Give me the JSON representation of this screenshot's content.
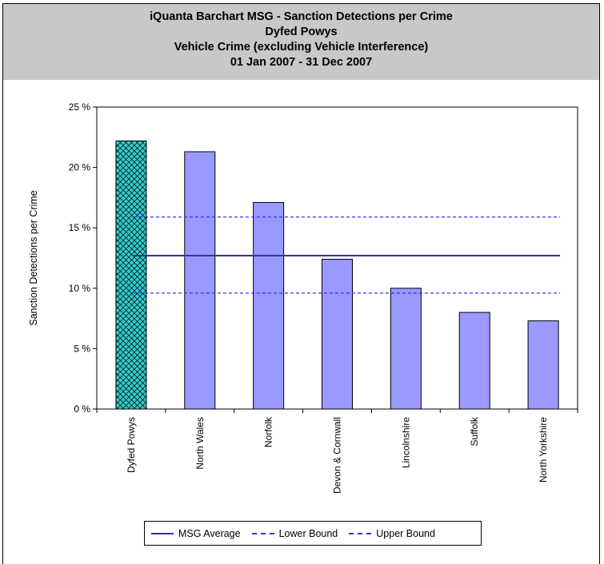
{
  "header": {
    "line1": "iQuanta Barchart MSG - Sanction Detections per Crime",
    "line2": "Dyfed Powys",
    "line3": "Vehicle Crime (excluding Vehicle Interference)",
    "line4": "01 Jan 2007 - 31 Dec 2007"
  },
  "legend": {
    "avg": "MSG Average",
    "lower": "Lower Bound",
    "upper": "Upper Bound"
  },
  "colors": {
    "bar": "#9999ff",
    "highlight": "#33cccc",
    "avg_line": "#333399",
    "bound_line": "#3333ff"
  },
  "chart_data": {
    "type": "bar",
    "title": "",
    "ylabel": "Sanction Detections per Crime",
    "xlabel": "",
    "ylim": [
      0,
      25
    ],
    "yticks": [
      0,
      5,
      10,
      15,
      20,
      25
    ],
    "ytick_labels": [
      "0  %",
      "5  %",
      "10  %",
      "15  %",
      "20  %",
      "25  %"
    ],
    "categories": [
      "Dyfed Powys",
      "North Wales",
      "Norfolk",
      "Devon & Cornwall",
      "Lincolnshire",
      "Suffolk",
      "North Yorkshire"
    ],
    "values": [
      22.2,
      21.3,
      17.1,
      12.4,
      10.0,
      8.0,
      7.3
    ],
    "highlight_index": 0,
    "reference_lines": [
      {
        "name": "MSG Average",
        "value": 12.7,
        "style": "solid"
      },
      {
        "name": "Lower Bound",
        "value": 9.6,
        "style": "dashed"
      },
      {
        "name": "Upper Bound",
        "value": 15.9,
        "style": "dashed"
      }
    ],
    "grid": false,
    "legend_position": "bottom"
  }
}
